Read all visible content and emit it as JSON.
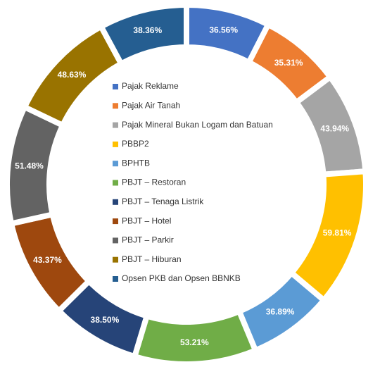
{
  "chart_data": {
    "type": "donut",
    "categories": [
      "Pajak Reklame",
      "Pajak Air Tanah",
      "Pajak Mineral Bukan Logam dan Batuan",
      "PBBP2",
      "BPHTB",
      "PBJT – Restoran",
      "PBJT – Tenaga Listrik",
      "PBJT – Hotel",
      "PBJT – Parkir",
      "PBJT – Hiburan",
      "Opsen PKB dan Opsen BBNKB"
    ],
    "values": [
      36.56,
      35.31,
      43.94,
      59.81,
      36.89,
      53.21,
      38.5,
      43.37,
      51.48,
      48.63,
      38.36
    ],
    "value_labels": [
      "36.56%",
      "35.31%",
      "43.94%",
      "59.81%",
      "36.89%",
      "53.21%",
      "38.50%",
      "43.37%",
      "51.48%",
      "48.63%",
      "38.36%"
    ],
    "colors": [
      "#4472c4",
      "#ed7d31",
      "#a5a5a5",
      "#ffc000",
      "#5b9bd5",
      "#70ad47",
      "#264478",
      "#9e480e",
      "#636363",
      "#997300",
      "#255e91"
    ],
    "legend": "center"
  }
}
